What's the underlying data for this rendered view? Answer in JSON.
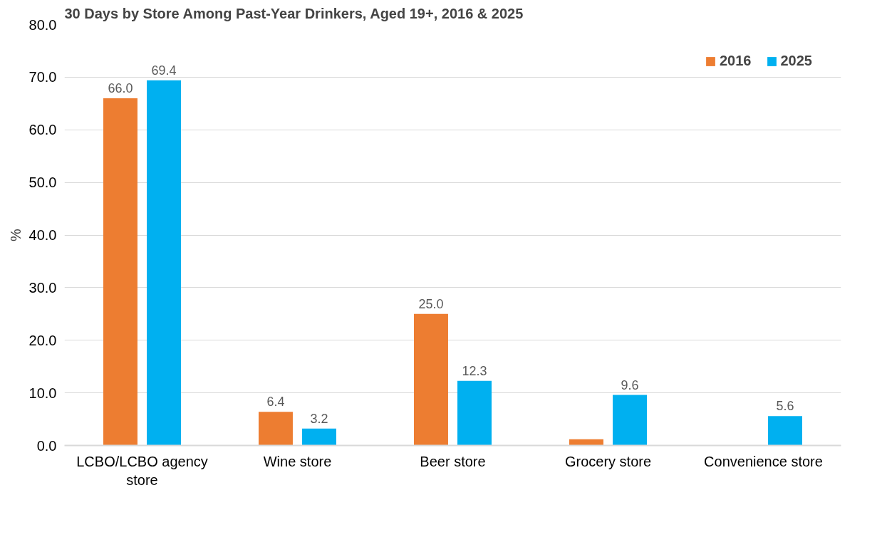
{
  "chart_data": {
    "type": "bar",
    "title": "30 Days by Store Among Past-Year Drinkers, Aged 19+, 2016 & 2025",
    "ylabel": "%",
    "categories": [
      "LCBO/LCBO agency store",
      "Wine store",
      "Beer store",
      "Grocery store",
      "Convenience store"
    ],
    "series": [
      {
        "name": "2016",
        "color": "#ed7d31",
        "values": [
          66.0,
          6.4,
          25.0,
          1.2,
          null
        ],
        "value_labels": [
          "66.0",
          "6.4",
          "25.0",
          null,
          null
        ]
      },
      {
        "name": "2025",
        "color": "#00b0f0",
        "values": [
          69.4,
          3.2,
          12.3,
          9.6,
          5.6
        ],
        "value_labels": [
          "69.4",
          "3.2",
          "12.3",
          "9.6",
          "5.6"
        ]
      }
    ],
    "ylim": [
      0,
      80
    ],
    "yticks": [
      {
        "value": 0,
        "label": "0.0"
      },
      {
        "value": 10,
        "label": "10.0"
      },
      {
        "value": 20,
        "label": "20.0"
      },
      {
        "value": 30,
        "label": "30.0"
      },
      {
        "value": 40,
        "label": "40.0"
      },
      {
        "value": 50,
        "label": "50.0"
      },
      {
        "value": 60,
        "label": "60.0"
      },
      {
        "value": 70,
        "label": "70.0"
      },
      {
        "value": 80,
        "label": "80.0"
      }
    ],
    "grid": "y",
    "legend": "top right"
  }
}
